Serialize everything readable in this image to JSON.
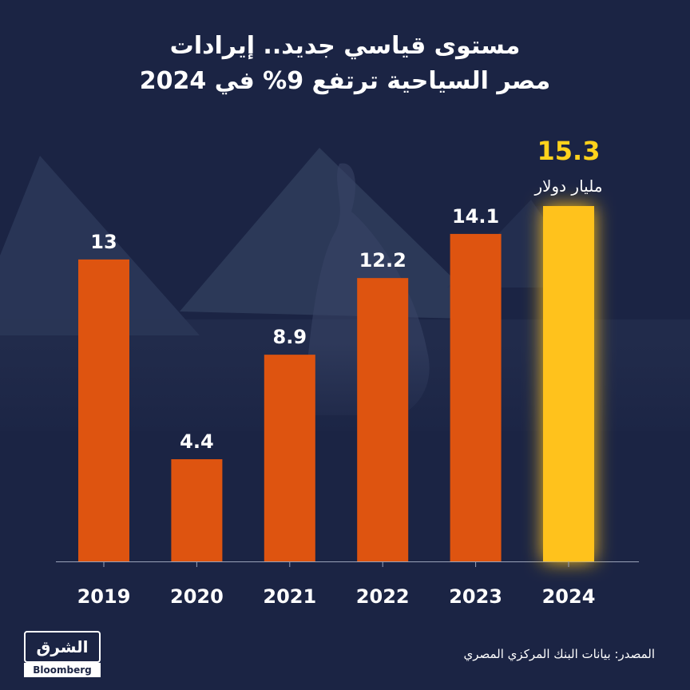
{
  "title": {
    "line1": "مستوى قياسي جديد.. إيرادات",
    "line2": "مصر السياحية ترتفع 9% في 2024"
  },
  "source": "المصدر: بيانات البنك المركزي المصري",
  "logo": {
    "main": "الشرق",
    "sub": "Bloomberg"
  },
  "colors": {
    "background": "#1b2444",
    "bar": "#de5410",
    "highlight_bar": "#ffc21f",
    "highlight_label": "#ffd21c",
    "text": "#ffffff"
  },
  "chart_data": {
    "type": "bar",
    "categories": [
      "2019",
      "2020",
      "2021",
      "2022",
      "2023",
      "2024"
    ],
    "values": [
      13,
      4.4,
      8.9,
      12.2,
      14.1,
      15.3
    ],
    "value_labels": [
      "13",
      "4.4",
      "8.9",
      "12.2",
      "14.1",
      "15.3"
    ],
    "highlight_index": 5,
    "unit_annotation": "مليار دولار",
    "title": "مستوى قياسي جديد.. إيرادات مصر السياحية ترتفع 9% في 2024",
    "xlabel": "",
    "ylabel": "",
    "ylim": [
      0,
      15.3
    ],
    "grid": false,
    "legend": "none"
  }
}
